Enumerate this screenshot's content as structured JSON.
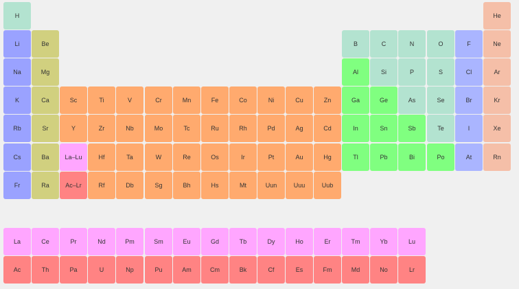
{
  "colors": {
    "hydrogen": "#b3e3d0",
    "alkali": "#9aa2ff",
    "alkaline": "#d1d07f",
    "transition": "#ffaa6e",
    "lanthanide": "#ffa6ff",
    "actinide": "#ff8383",
    "post_transition": "#80ff80",
    "metalloid_nonmetal": "#b3e3d0",
    "halogen": "#aab5ff",
    "noble": "#f5bfa8"
  },
  "rows": [
    {
      "row": 0,
      "elements": [
        {
          "symbol": "H",
          "col": 0,
          "group": "hydrogen"
        },
        {
          "symbol": "He",
          "col": 17,
          "group": "noble"
        }
      ]
    },
    {
      "row": 1,
      "elements": [
        {
          "symbol": "Li",
          "col": 0,
          "group": "alkali"
        },
        {
          "symbol": "Be",
          "col": 1,
          "group": "alkaline"
        },
        {
          "symbol": "B",
          "col": 12,
          "group": "metalloid_nonmetal"
        },
        {
          "symbol": "C",
          "col": 13,
          "group": "metalloid_nonmetal"
        },
        {
          "symbol": "N",
          "col": 14,
          "group": "metalloid_nonmetal"
        },
        {
          "symbol": "O",
          "col": 15,
          "group": "metalloid_nonmetal"
        },
        {
          "symbol": "F",
          "col": 16,
          "group": "halogen"
        },
        {
          "symbol": "Ne",
          "col": 17,
          "group": "noble"
        }
      ]
    },
    {
      "row": 2,
      "elements": [
        {
          "symbol": "Na",
          "col": 0,
          "group": "alkali"
        },
        {
          "symbol": "Mg",
          "col": 1,
          "group": "alkaline"
        },
        {
          "symbol": "Al",
          "col": 12,
          "group": "post_transition"
        },
        {
          "symbol": "Si",
          "col": 13,
          "group": "metalloid_nonmetal"
        },
        {
          "symbol": "P",
          "col": 14,
          "group": "metalloid_nonmetal"
        },
        {
          "symbol": "S",
          "col": 15,
          "group": "metalloid_nonmetal"
        },
        {
          "symbol": "Cl",
          "col": 16,
          "group": "halogen"
        },
        {
          "symbol": "Ar",
          "col": 17,
          "group": "noble"
        }
      ]
    },
    {
      "row": 3,
      "elements": [
        {
          "symbol": "K",
          "col": 0,
          "group": "alkali"
        },
        {
          "symbol": "Ca",
          "col": 1,
          "group": "alkaline"
        },
        {
          "symbol": "Sc",
          "col": 2,
          "group": "transition"
        },
        {
          "symbol": "Ti",
          "col": 3,
          "group": "transition"
        },
        {
          "symbol": "V",
          "col": 4,
          "group": "transition"
        },
        {
          "symbol": "Cr",
          "col": 5,
          "group": "transition"
        },
        {
          "symbol": "Mn",
          "col": 6,
          "group": "transition"
        },
        {
          "symbol": "Fe",
          "col": 7,
          "group": "transition"
        },
        {
          "symbol": "Co",
          "col": 8,
          "group": "transition"
        },
        {
          "symbol": "Ni",
          "col": 9,
          "group": "transition"
        },
        {
          "symbol": "Cu",
          "col": 10,
          "group": "transition"
        },
        {
          "symbol": "Zn",
          "col": 11,
          "group": "transition"
        },
        {
          "symbol": "Ga",
          "col": 12,
          "group": "post_transition"
        },
        {
          "symbol": "Ge",
          "col": 13,
          "group": "post_transition"
        },
        {
          "symbol": "As",
          "col": 14,
          "group": "metalloid_nonmetal"
        },
        {
          "symbol": "Se",
          "col": 15,
          "group": "metalloid_nonmetal"
        },
        {
          "symbol": "Br",
          "col": 16,
          "group": "halogen"
        },
        {
          "symbol": "Kr",
          "col": 17,
          "group": "noble"
        }
      ]
    },
    {
      "row": 4,
      "elements": [
        {
          "symbol": "Rb",
          "col": 0,
          "group": "alkali"
        },
        {
          "symbol": "Sr",
          "col": 1,
          "group": "alkaline"
        },
        {
          "symbol": "Y",
          "col": 2,
          "group": "transition"
        },
        {
          "symbol": "Zr",
          "col": 3,
          "group": "transition"
        },
        {
          "symbol": "Nb",
          "col": 4,
          "group": "transition"
        },
        {
          "symbol": "Mo",
          "col": 5,
          "group": "transition"
        },
        {
          "symbol": "Tc",
          "col": 6,
          "group": "transition"
        },
        {
          "symbol": "Ru",
          "col": 7,
          "group": "transition"
        },
        {
          "symbol": "Rh",
          "col": 8,
          "group": "transition"
        },
        {
          "symbol": "Pd",
          "col": 9,
          "group": "transition"
        },
        {
          "symbol": "Ag",
          "col": 10,
          "group": "transition"
        },
        {
          "symbol": "Cd",
          "col": 11,
          "group": "transition"
        },
        {
          "symbol": "In",
          "col": 12,
          "group": "post_transition"
        },
        {
          "symbol": "Sn",
          "col": 13,
          "group": "post_transition"
        },
        {
          "symbol": "Sb",
          "col": 14,
          "group": "post_transition"
        },
        {
          "symbol": "Te",
          "col": 15,
          "group": "metalloid_nonmetal"
        },
        {
          "symbol": "I",
          "col": 16,
          "group": "halogen"
        },
        {
          "symbol": "Xe",
          "col": 17,
          "group": "noble"
        }
      ]
    },
    {
      "row": 5,
      "elements": [
        {
          "symbol": "Cs",
          "col": 0,
          "group": "alkali"
        },
        {
          "symbol": "Ba",
          "col": 1,
          "group": "alkaline"
        },
        {
          "symbol": "La–Lu",
          "col": 2,
          "group": "lanthanide"
        },
        {
          "symbol": "Hf",
          "col": 3,
          "group": "transition"
        },
        {
          "symbol": "Ta",
          "col": 4,
          "group": "transition"
        },
        {
          "symbol": "W",
          "col": 5,
          "group": "transition"
        },
        {
          "symbol": "Re",
          "col": 6,
          "group": "transition"
        },
        {
          "symbol": "Os",
          "col": 7,
          "group": "transition"
        },
        {
          "symbol": "Ir",
          "col": 8,
          "group": "transition"
        },
        {
          "symbol": "Pt",
          "col": 9,
          "group": "transition"
        },
        {
          "symbol": "Au",
          "col": 10,
          "group": "transition"
        },
        {
          "symbol": "Hg",
          "col": 11,
          "group": "transition"
        },
        {
          "symbol": "Tl",
          "col": 12,
          "group": "post_transition"
        },
        {
          "symbol": "Pb",
          "col": 13,
          "group": "post_transition"
        },
        {
          "symbol": "Bi",
          "col": 14,
          "group": "post_transition"
        },
        {
          "symbol": "Po",
          "col": 15,
          "group": "post_transition"
        },
        {
          "symbol": "At",
          "col": 16,
          "group": "halogen"
        },
        {
          "symbol": "Rn",
          "col": 17,
          "group": "noble"
        }
      ]
    },
    {
      "row": 6,
      "elements": [
        {
          "symbol": "Fr",
          "col": 0,
          "group": "alkali"
        },
        {
          "symbol": "Ra",
          "col": 1,
          "group": "alkaline"
        },
        {
          "symbol": "Ac–Lr",
          "col": 2,
          "group": "actinide"
        },
        {
          "symbol": "Rf",
          "col": 3,
          "group": "transition"
        },
        {
          "symbol": "Db",
          "col": 4,
          "group": "transition"
        },
        {
          "symbol": "Sg",
          "col": 5,
          "group": "transition"
        },
        {
          "symbol": "Bh",
          "col": 6,
          "group": "transition"
        },
        {
          "symbol": "Hs",
          "col": 7,
          "group": "transition"
        },
        {
          "symbol": "Mt",
          "col": 8,
          "group": "transition"
        },
        {
          "symbol": "Uun",
          "col": 9,
          "group": "transition"
        },
        {
          "symbol": "Uuu",
          "col": 10,
          "group": "transition"
        },
        {
          "symbol": "Uub",
          "col": 11,
          "group": "transition"
        }
      ]
    },
    {
      "row": 8,
      "elements": [
        {
          "symbol": "La",
          "col": 0,
          "group": "lanthanide"
        },
        {
          "symbol": "Ce",
          "col": 1,
          "group": "lanthanide"
        },
        {
          "symbol": "Pr",
          "col": 2,
          "group": "lanthanide"
        },
        {
          "symbol": "Nd",
          "col": 3,
          "group": "lanthanide"
        },
        {
          "symbol": "Pm",
          "col": 4,
          "group": "lanthanide"
        },
        {
          "symbol": "Sm",
          "col": 5,
          "group": "lanthanide"
        },
        {
          "symbol": "Eu",
          "col": 6,
          "group": "lanthanide"
        },
        {
          "symbol": "Gd",
          "col": 7,
          "group": "lanthanide"
        },
        {
          "symbol": "Tb",
          "col": 8,
          "group": "lanthanide"
        },
        {
          "symbol": "Dy",
          "col": 9,
          "group": "lanthanide"
        },
        {
          "symbol": "Ho",
          "col": 10,
          "group": "lanthanide"
        },
        {
          "symbol": "Er",
          "col": 11,
          "group": "lanthanide"
        },
        {
          "symbol": "Tm",
          "col": 12,
          "group": "lanthanide"
        },
        {
          "symbol": "Yb",
          "col": 13,
          "group": "lanthanide"
        },
        {
          "symbol": "Lu",
          "col": 14,
          "group": "lanthanide"
        }
      ]
    },
    {
      "row": 9,
      "elements": [
        {
          "symbol": "Ac",
          "col": 0,
          "group": "actinide"
        },
        {
          "symbol": "Th",
          "col": 1,
          "group": "actinide"
        },
        {
          "symbol": "Pa",
          "col": 2,
          "group": "actinide"
        },
        {
          "symbol": "U",
          "col": 3,
          "group": "actinide"
        },
        {
          "symbol": "Np",
          "col": 4,
          "group": "actinide"
        },
        {
          "symbol": "Pu",
          "col": 5,
          "group": "actinide"
        },
        {
          "symbol": "Am",
          "col": 6,
          "group": "actinide"
        },
        {
          "symbol": "Cm",
          "col": 7,
          "group": "actinide"
        },
        {
          "symbol": "Bk",
          "col": 8,
          "group": "actinide"
        },
        {
          "symbol": "Cf",
          "col": 9,
          "group": "actinide"
        },
        {
          "symbol": "Es",
          "col": 10,
          "group": "actinide"
        },
        {
          "symbol": "Fm",
          "col": 11,
          "group": "actinide"
        },
        {
          "symbol": "Md",
          "col": 12,
          "group": "actinide"
        },
        {
          "symbol": "No",
          "col": 13,
          "group": "actinide"
        },
        {
          "symbol": "Lr",
          "col": 14,
          "group": "actinide"
        }
      ]
    }
  ]
}
